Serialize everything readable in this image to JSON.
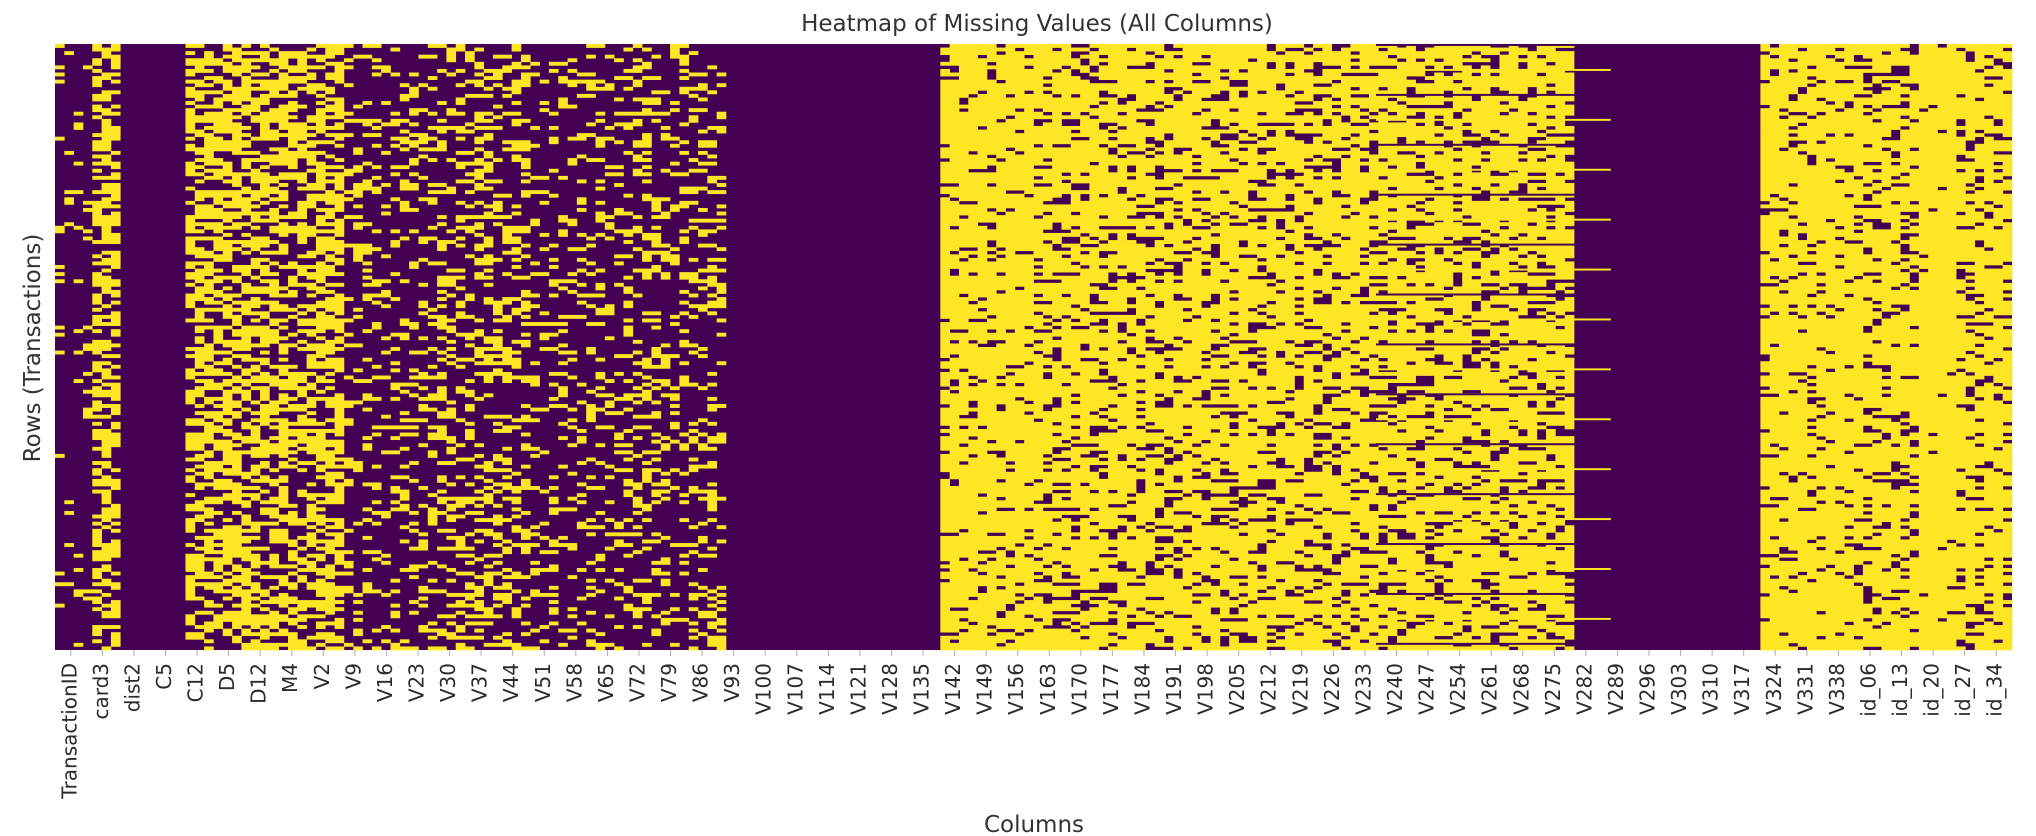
{
  "chart_data": {
    "type": "heatmap",
    "title": "Heatmap of Missing Values (All Columns)",
    "xlabel": "Columns",
    "ylabel": "Rows (Transactions)",
    "colors": {
      "present": "#440154",
      "missing": "#fde725"
    },
    "legend": "none",
    "grid": false,
    "column_tick_labels": [
      "TransactionID",
      "card3",
      "dist2",
      "C5",
      "C12",
      "D5",
      "D12",
      "M4",
      "V2",
      "V9",
      "V16",
      "V23",
      "V30",
      "V37",
      "V44",
      "V51",
      "V58",
      "V65",
      "V72",
      "V79",
      "V86",
      "V93",
      "V100",
      "V107",
      "V114",
      "V121",
      "V128",
      "V135",
      "V142",
      "V149",
      "V156",
      "V163",
      "V170",
      "V177",
      "V184",
      "V191",
      "V198",
      "V205",
      "V212",
      "V219",
      "V226",
      "V233",
      "V240",
      "V247",
      "V254",
      "V261",
      "V268",
      "V275",
      "V282",
      "V289",
      "V296",
      "V303",
      "V310",
      "V317",
      "V324",
      "V331",
      "V338",
      "id_06",
      "id_13",
      "id_20",
      "id_27",
      "id_34"
    ],
    "column_missing_pattern": [
      {
        "from": "TransactionID",
        "to": "card3",
        "missing_fraction": 0.02
      },
      {
        "from": "card3",
        "to": "dist2",
        "missing_fraction": 0.6
      },
      {
        "from": "dist2",
        "to": "C12",
        "missing_fraction": 0.0
      },
      {
        "from": "C12",
        "to": "M4",
        "missing_fraction": 0.6
      },
      {
        "from": "M4",
        "to": "V9",
        "missing_fraction": 0.55
      },
      {
        "from": "V9",
        "to": "V30",
        "missing_fraction": 0.18
      },
      {
        "from": "V30",
        "to": "V51",
        "missing_fraction": 0.3
      },
      {
        "from": "V51",
        "to": "V72",
        "missing_fraction": 0.15
      },
      {
        "from": "V72",
        "to": "V93",
        "missing_fraction": 0.22
      },
      {
        "from": "V93",
        "to": "V135",
        "missing_fraction": 0.0
      },
      {
        "from": "V142",
        "to": "V163",
        "missing_fraction": 0.88
      },
      {
        "from": "V163",
        "to": "V275",
        "missing_fraction": 0.78
      },
      {
        "from": "V282",
        "to": "V317",
        "missing_fraction": 0.0
      },
      {
        "from": "V324",
        "to": "V338",
        "missing_fraction": 0.88
      },
      {
        "from": "id_06",
        "to": "id_20",
        "missing_fraction": 0.78
      },
      {
        "from": "id_20",
        "to": "id_27",
        "missing_fraction": 0.97
      },
      {
        "from": "id_27",
        "to": "id_34",
        "missing_fraction": 0.8
      }
    ]
  }
}
